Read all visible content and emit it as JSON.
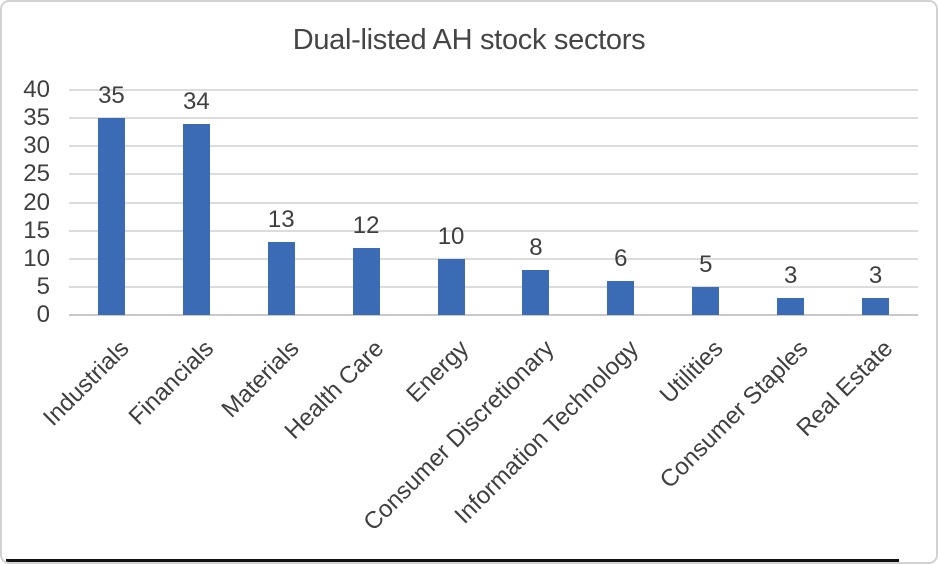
{
  "chart_data": {
    "type": "bar",
    "title": "Dual-listed AH stock sectors",
    "categories": [
      "Industrials",
      "Financials",
      "Materials",
      "Health Care",
      "Energy",
      "Consumer Discretionary",
      "Information Technology",
      "Utilities",
      "Consumer Staples",
      "Real Estate"
    ],
    "values": [
      35,
      34,
      13,
      12,
      10,
      8,
      6,
      5,
      3,
      3
    ],
    "xlabel": "",
    "ylabel": "",
    "ylim": [
      0,
      40
    ],
    "ytick_step": 5,
    "grid": true,
    "legend_position": "none",
    "data_labels": true,
    "bar_color": "#3B6BB5",
    "gridline_color": "#DCDCDC",
    "axis_line_color": "#C9C9C9",
    "label_color": "#3F3F3F",
    "title_color": "#454545"
  }
}
